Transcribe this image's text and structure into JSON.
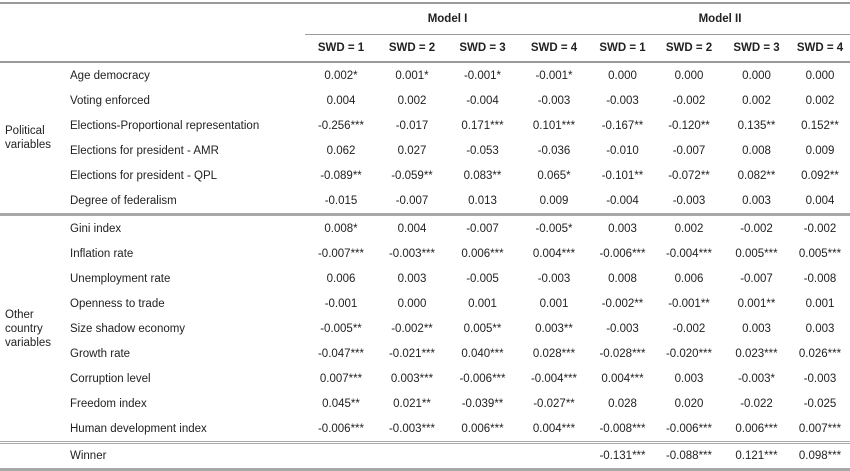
{
  "header": {
    "models": [
      "Model I",
      "Model II"
    ],
    "columns": [
      "SWD = 1",
      "SWD = 2",
      "SWD = 3",
      "SWD = 4",
      "SWD = 1",
      "SWD = 2",
      "SWD = 3",
      "SWD = 4"
    ]
  },
  "groups": [
    {
      "label": "Political variables",
      "rows": [
        {
          "label": "Age democracy",
          "values": [
            "0.002*",
            "0.001*",
            "-0.001*",
            "-0.001*",
            "0.000",
            "0.000",
            "0.000",
            "0.000"
          ]
        },
        {
          "label": "Voting enforced",
          "values": [
            "0.004",
            "0.002",
            "-0.004",
            "-0.003",
            "-0.003",
            "-0.002",
            "0.002",
            "0.002"
          ]
        },
        {
          "label": "Elections-Proportional representation",
          "values": [
            "-0.256***",
            "-0.017",
            "0.171***",
            "0.101***",
            "-0.167**",
            "-0.120**",
            "0.135**",
            "0.152**"
          ]
        },
        {
          "label": "Elections for president - AMR",
          "values": [
            "0.062",
            "0.027",
            "-0.053",
            "-0.036",
            "-0.010",
            "-0.007",
            "0.008",
            "0.009"
          ]
        },
        {
          "label": "Elections for president - QPL",
          "values": [
            "-0.089**",
            "-0.059**",
            "0.083**",
            "0.065*",
            "-0.101**",
            "-0.072**",
            "0.082**",
            "0.092**"
          ]
        },
        {
          "label": "Degree of federalism",
          "values": [
            "-0.015",
            "-0.007",
            "0.013",
            "0.009",
            "-0.004",
            "-0.003",
            "0.003",
            "0.004"
          ]
        }
      ]
    },
    {
      "label": "Other country variables",
      "rows": [
        {
          "label": "Gini index",
          "values": [
            "0.008*",
            "0.004",
            "-0.007",
            "-0.005*",
            "0.003",
            "0.002",
            "-0.002",
            "-0.002"
          ]
        },
        {
          "label": "Inflation rate",
          "values": [
            "-0.007***",
            "-0.003***",
            "0.006***",
            "0.004***",
            "-0.006***",
            "-0.004***",
            "0.005***",
            "0.005***"
          ]
        },
        {
          "label": "Unemployment rate",
          "values": [
            "0.006",
            "0.003",
            "-0.005",
            "-0.003",
            "0.008",
            "0.006",
            "-0.007",
            "-0.008"
          ]
        },
        {
          "label": "Openness to trade",
          "values": [
            "-0.001",
            "0.000",
            "0.001",
            "0.001",
            "-0.002**",
            "-0.001**",
            "0.001**",
            "0.001"
          ]
        },
        {
          "label": "Size shadow economy",
          "values": [
            "-0.005**",
            "-0.002**",
            "0.005**",
            "0.003**",
            "-0.003",
            "-0.002",
            "0.003",
            "0.003"
          ]
        },
        {
          "label": "Growth rate",
          "values": [
            "-0.047***",
            "-0.021***",
            "0.040***",
            "0.028***",
            "-0.028***",
            "-0.020***",
            "0.023***",
            "0.026***"
          ]
        },
        {
          "label": "Corruption level",
          "values": [
            "0.007***",
            "0.003***",
            "-0.006***",
            "-0.004***",
            "0.004***",
            "0.003",
            "-0.003*",
            "-0.003"
          ]
        },
        {
          "label": "Freedom index",
          "values": [
            "0.045**",
            "0.021**",
            "-0.039**",
            "-0.027**",
            "0.028",
            "0.020",
            "-0.022",
            "-0.025"
          ]
        },
        {
          "label": "Human development index",
          "values": [
            "-0.006***",
            "-0.003***",
            "0.006***",
            "0.004***",
            "-0.008***",
            "-0.006***",
            "0.006***",
            "0.007***"
          ]
        }
      ]
    }
  ],
  "winner": {
    "label": "Winner",
    "values": [
      "",
      "",
      "",
      "",
      "-0.131***",
      "-0.088***",
      "0.121***",
      "0.098***"
    ]
  }
}
